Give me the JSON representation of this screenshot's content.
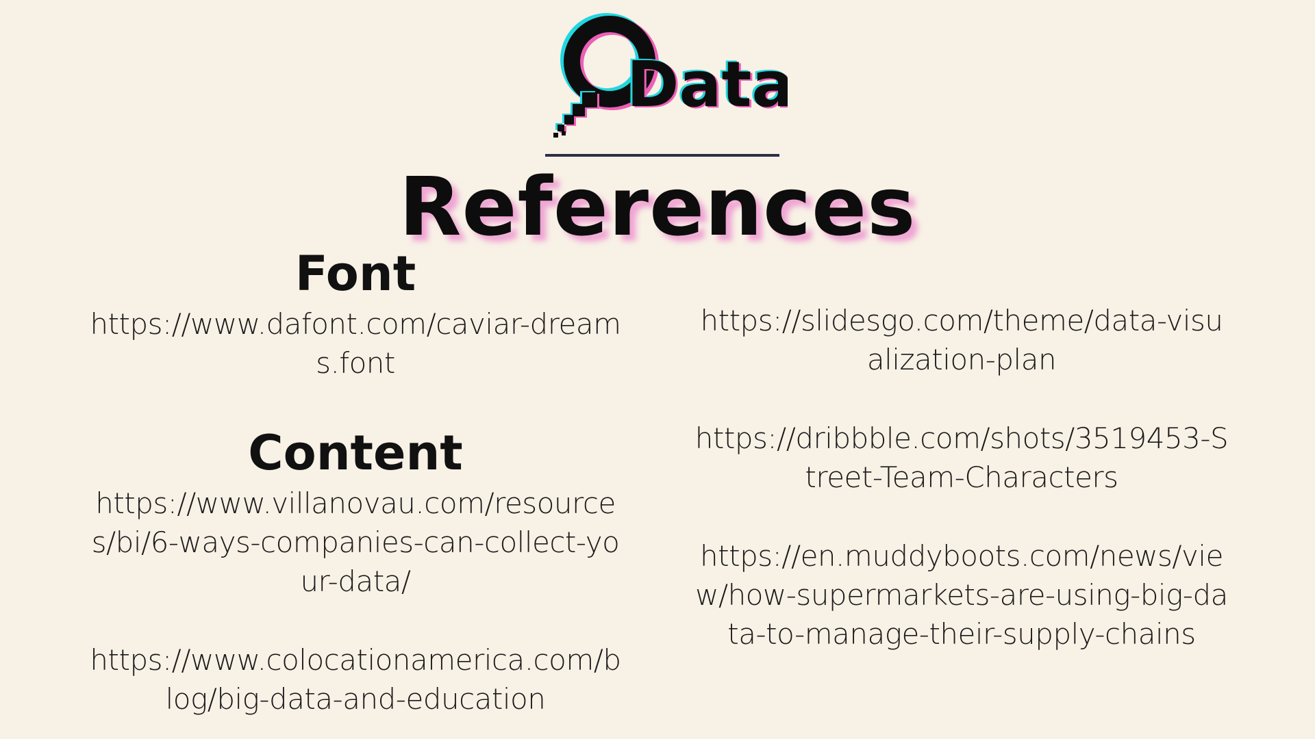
{
  "logo": {
    "text": "Data",
    "icon": "magnifier-icon"
  },
  "title": "References",
  "left_column": {
    "font_heading": "Font",
    "font_links": [
      "https://www.dafont.com/caviar-dreams.font"
    ],
    "content_heading": "Content",
    "content_links": [
      "https://www.villanovau.com/resources/bi/6-ways-companies-can-collect-your-data/",
      "https://www.colocationamerica.com/blog/big-data-and-education"
    ]
  },
  "right_column": {
    "links": [
      "https://slidesgo.com/theme/data-visualization-plan",
      "https://dribbble.com/shots/3519453-Street-Team-Characters",
      "https://en.muddyboots.com/news/view/how-supermarkets-are-using-big-data-to-manage-their-supply-chains"
    ]
  },
  "colors": {
    "background": "#f8f1e6",
    "text": "#141414",
    "glow_pink": "#ec8ccd",
    "glow_cyan": "#22d6e0",
    "divider": "#2c2f45"
  }
}
